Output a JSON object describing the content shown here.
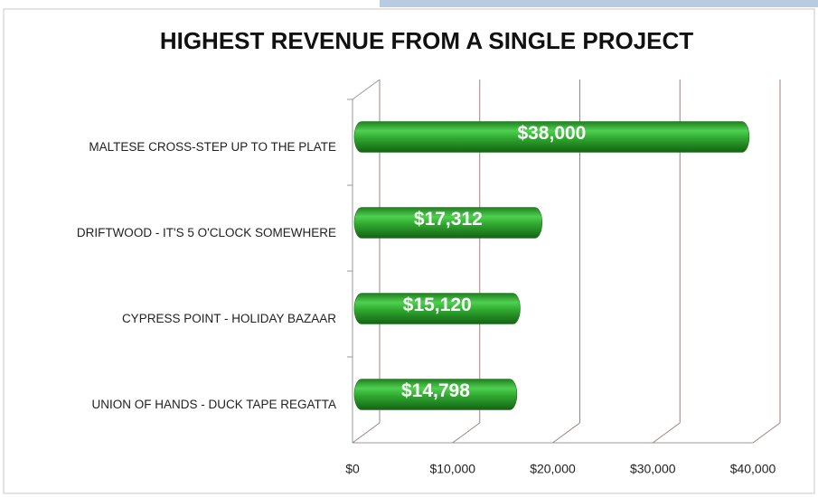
{
  "chart_data": {
    "type": "bar",
    "orientation": "horizontal",
    "title": "HIGHEST REVENUE FROM A SINGLE PROJECT",
    "categories": [
      "MALTESE CROSS-STEP UP TO THE PLATE",
      "DRIFTWOOD - IT'S  5 O'CLOCK SOMEWHERE",
      "CYPRESS POINT - HOLIDAY BAZAAR",
      "UNION OF HANDS - DUCK TAPE REGATTA"
    ],
    "values": [
      38000,
      17312,
      15120,
      14798
    ],
    "value_labels": [
      "$38,000",
      "$17,312",
      "$15,120",
      "$14,798"
    ],
    "color": "#2fa82f",
    "xlim": [
      0,
      40000
    ],
    "xticks": [
      {
        "value": 0,
        "label": "$0"
      },
      {
        "value": 10000,
        "label": "$10,000"
      },
      {
        "value": 20000,
        "label": "$20,000"
      },
      {
        "value": 30000,
        "label": "$30,000"
      },
      {
        "value": 40000,
        "label": "$40,000"
      }
    ],
    "grid": true
  }
}
